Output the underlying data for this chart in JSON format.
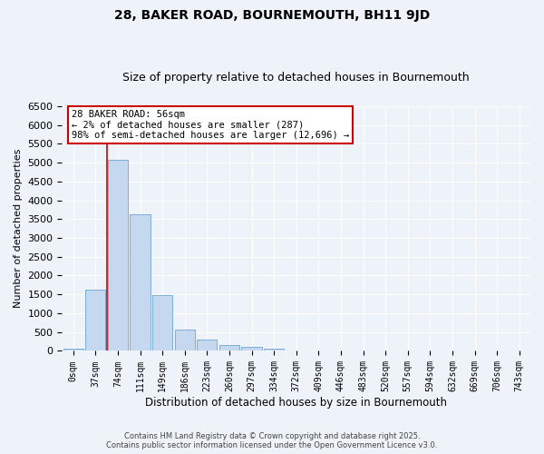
{
  "title": "28, BAKER ROAD, BOURNEMOUTH, BH11 9JD",
  "subtitle": "Size of property relative to detached houses in Bournemouth",
  "xlabel": "Distribution of detached houses by size in Bournemouth",
  "ylabel": "Number of detached properties",
  "footer_line1": "Contains HM Land Registry data © Crown copyright and database right 2025.",
  "footer_line2": "Contains public sector information licensed under the Open Government Licence v3.0.",
  "bar_color": "#c5d8f0",
  "bar_edge_color": "#7bafd4",
  "annotation_box_color": "#cc0000",
  "vline_color": "#cc0000",
  "background_color": "#eef2f9",
  "grid_color": "#ffffff",
  "categories": [
    "0sqm",
    "37sqm",
    "74sqm",
    "111sqm",
    "149sqm",
    "186sqm",
    "223sqm",
    "260sqm",
    "297sqm",
    "334sqm",
    "372sqm",
    "409sqm",
    "446sqm",
    "483sqm",
    "520sqm",
    "557sqm",
    "594sqm",
    "632sqm",
    "669sqm",
    "706sqm",
    "743sqm"
  ],
  "values": [
    50,
    1620,
    5080,
    3620,
    1480,
    570,
    300,
    150,
    100,
    60,
    20,
    10,
    5,
    3,
    2,
    1,
    0,
    0,
    0,
    0,
    0
  ],
  "ylim": [
    0,
    6500
  ],
  "yticks": [
    0,
    500,
    1000,
    1500,
    2000,
    2500,
    3000,
    3500,
    4000,
    4500,
    5000,
    5500,
    6000,
    6500
  ],
  "property_label": "28 BAKER ROAD: 56sqm",
  "pct_smaller": "2%",
  "n_smaller": "287",
  "pct_larger": "98%",
  "n_larger": "12,696",
  "vline_x_index": 1.5
}
